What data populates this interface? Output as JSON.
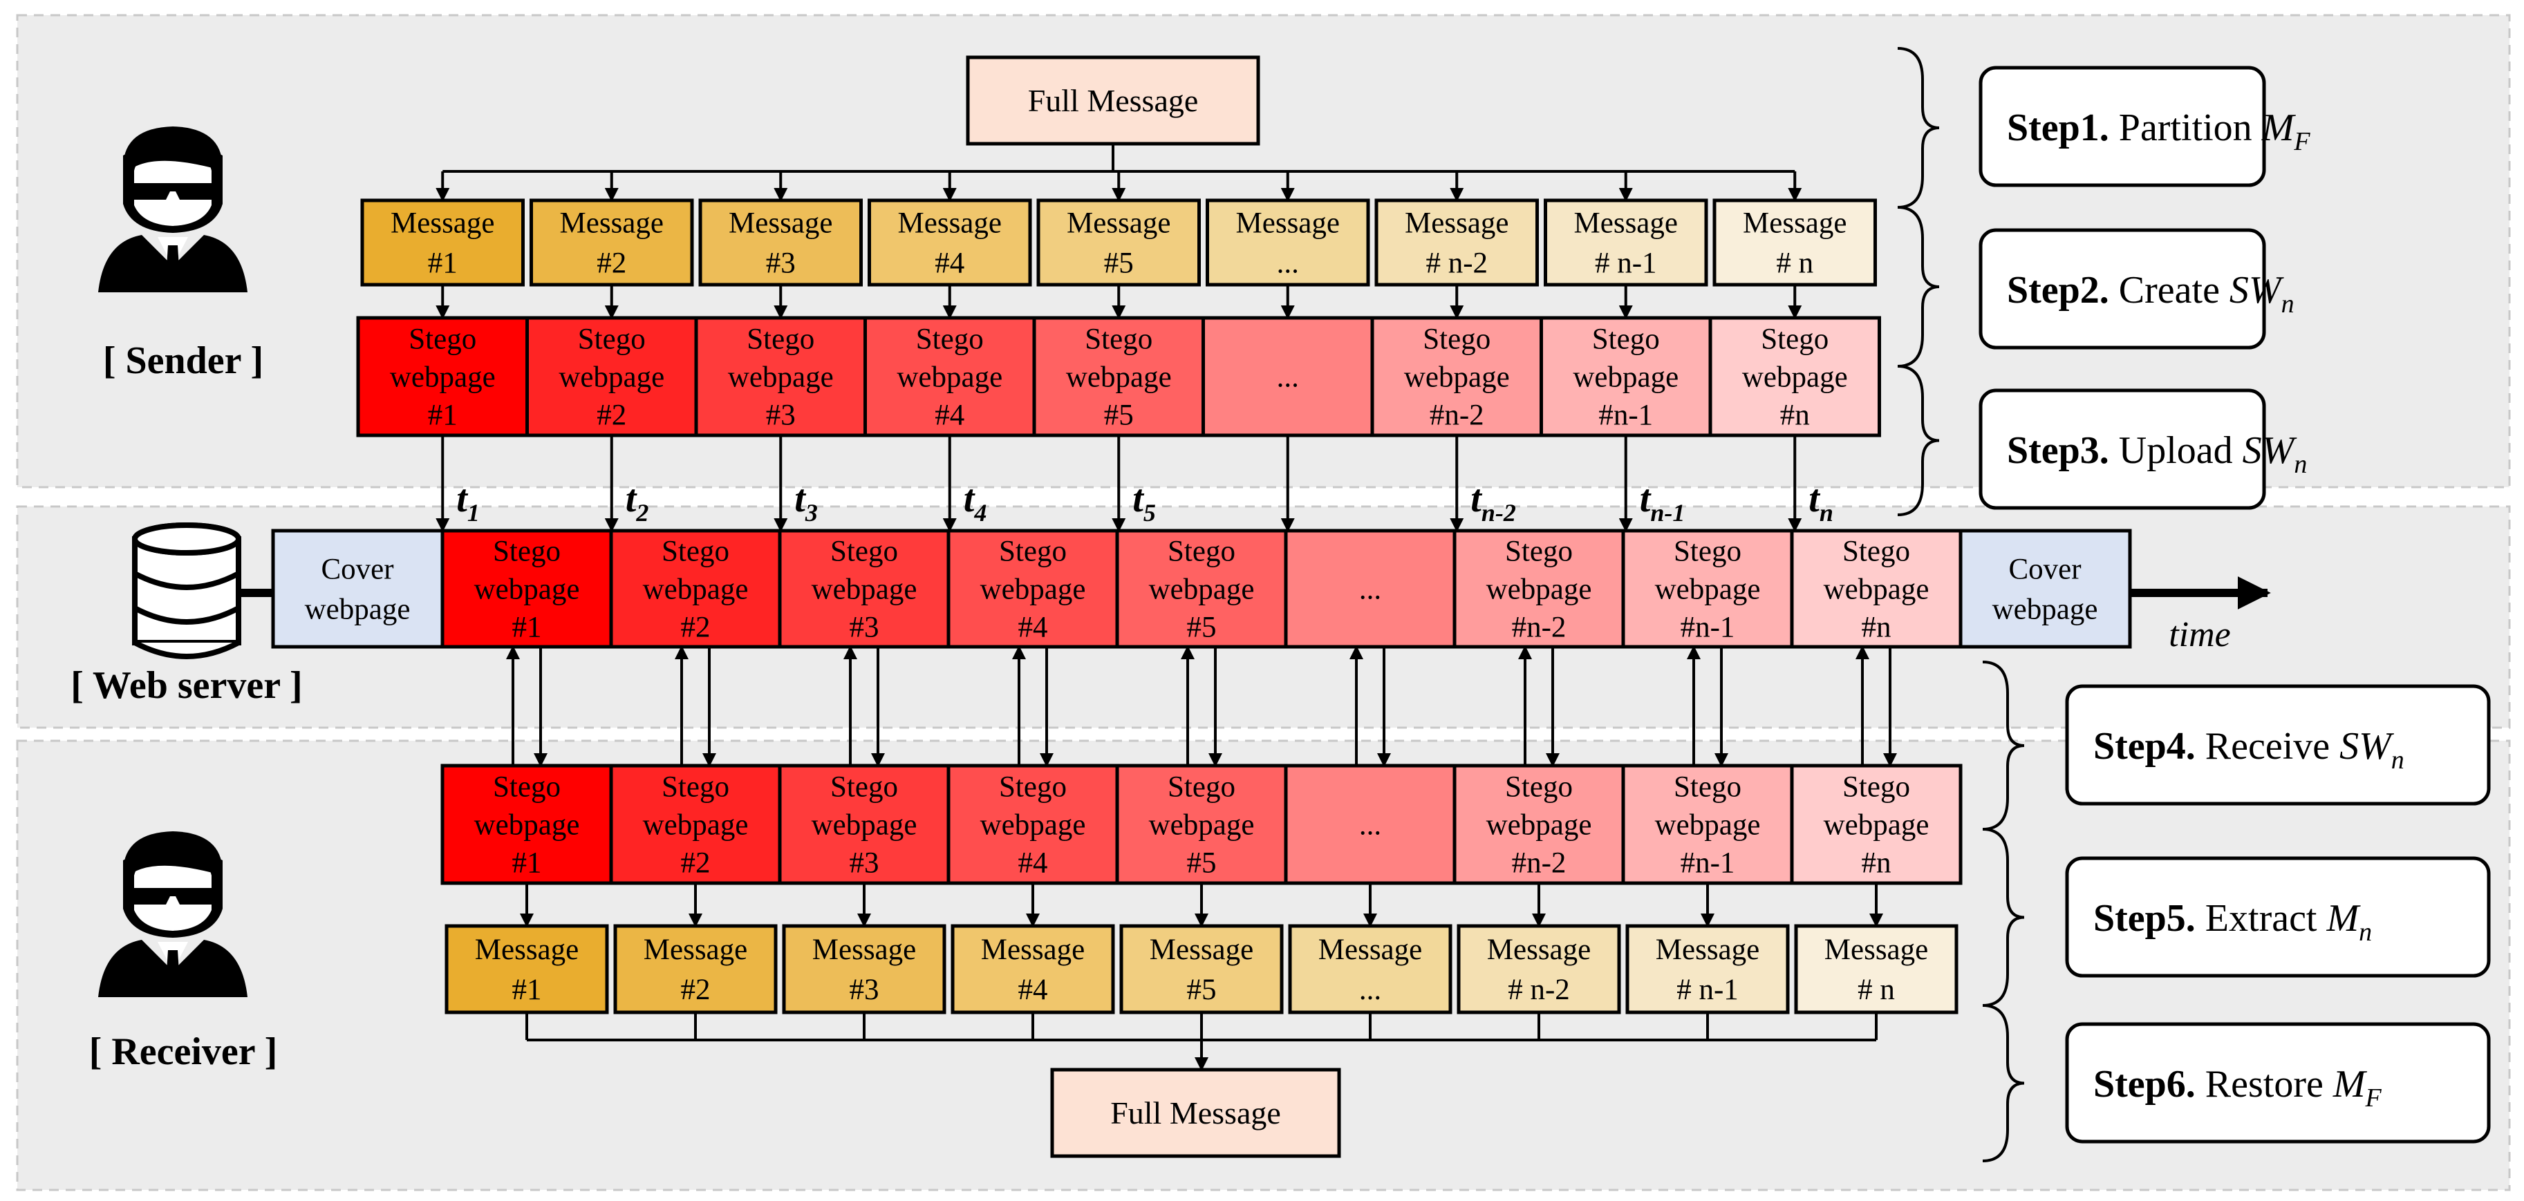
{
  "sender": {
    "label": "[ Sender ]",
    "full_message": "Full Message",
    "messages": [
      [
        "Message",
        "#1"
      ],
      [
        "Message",
        "#2"
      ],
      [
        "Message",
        "#3"
      ],
      [
        "Message",
        "#4"
      ],
      [
        "Message",
        "#5"
      ],
      [
        "Message",
        "..."
      ],
      [
        "Message",
        "# n-2"
      ],
      [
        "Message",
        "# n-1"
      ],
      [
        "Message",
        "# n"
      ]
    ],
    "stego": [
      [
        "Stego",
        "webpage",
        "#1"
      ],
      [
        "Stego",
        "webpage",
        "#2"
      ],
      [
        "Stego",
        "webpage",
        "#3"
      ],
      [
        "Stego",
        "webpage",
        "#4"
      ],
      [
        "Stego",
        "webpage",
        "#5"
      ],
      [
        "..."
      ],
      [
        "Stego",
        "webpage",
        "#n-2"
      ],
      [
        "Stego",
        "webpage",
        "#n-1"
      ],
      [
        "Stego",
        "webpage",
        "#n"
      ]
    ]
  },
  "times": [
    {
      "t": "t",
      "sub": "1"
    },
    {
      "t": "t",
      "sub": "2"
    },
    {
      "t": "t",
      "sub": "3"
    },
    {
      "t": "t",
      "sub": "4"
    },
    {
      "t": "t",
      "sub": "5"
    },
    null,
    {
      "t": "t",
      "sub": "n-2"
    },
    {
      "t": "t",
      "sub": "n-1"
    },
    {
      "t": "t",
      "sub": "n"
    }
  ],
  "server": {
    "label": "[ Web server ]",
    "cover": [
      "Cover",
      "webpage"
    ],
    "time_label": "time",
    "stego": [
      [
        "Stego",
        "webpage",
        "#1"
      ],
      [
        "Stego",
        "webpage",
        "#2"
      ],
      [
        "Stego",
        "webpage",
        "#3"
      ],
      [
        "Stego",
        "webpage",
        "#4"
      ],
      [
        "Stego",
        "webpage",
        "#5"
      ],
      [
        "..."
      ],
      [
        "Stego",
        "webpage",
        "#n-2"
      ],
      [
        "Stego",
        "webpage",
        "#n-1"
      ],
      [
        "Stego",
        "webpage",
        "#n"
      ]
    ]
  },
  "receiver": {
    "label": "[ Receiver ]",
    "full_message": "Full Message",
    "stego": [
      [
        "Stego",
        "webpage",
        "#1"
      ],
      [
        "Stego",
        "webpage",
        "#2"
      ],
      [
        "Stego",
        "webpage",
        "#3"
      ],
      [
        "Stego",
        "webpage",
        "#4"
      ],
      [
        "Stego",
        "webpage",
        "#5"
      ],
      [
        "..."
      ],
      [
        "Stego",
        "webpage",
        "#n-2"
      ],
      [
        "Stego",
        "webpage",
        "#n-1"
      ],
      [
        "Stego",
        "webpage",
        "#n"
      ]
    ],
    "messages": [
      [
        "Message",
        "#1"
      ],
      [
        "Message",
        "#2"
      ],
      [
        "Message",
        "#3"
      ],
      [
        "Message",
        "#4"
      ],
      [
        "Message",
        "#5"
      ],
      [
        "Message",
        "..."
      ],
      [
        "Message",
        "# n-2"
      ],
      [
        "Message",
        "# n-1"
      ],
      [
        "Message",
        "# n"
      ]
    ]
  },
  "steps": [
    {
      "bold": "Step1.",
      "text": "Partition",
      "sym": "M",
      "sub": "F"
    },
    {
      "bold": "Step2.",
      "text": "Create",
      "sym": "SW",
      "sub": "n"
    },
    {
      "bold": "Step3.",
      "text": "Upload",
      "sym": "SW",
      "sub": "n"
    },
    {
      "bold": "Step4.",
      "text": "Receive",
      "sym": "SW",
      "sub": "n"
    },
    {
      "bold": "Step5.",
      "text": "Extract",
      "sym": "M",
      "sub": "n"
    },
    {
      "bold": "Step6.",
      "text": "Restore",
      "sym": "M",
      "sub": "F"
    }
  ],
  "colors": {
    "panel_bg": "#ececec",
    "stego": [
      "#ff0000",
      "#ff2424",
      "#ff3b3b",
      "#ff4e4e",
      "#ff6262",
      "#ff8282",
      "#ff9c9c",
      "#ffb2b2",
      "#ffcccc"
    ],
    "message": [
      "#e9ad2f",
      "#ebb645",
      "#edbd58",
      "#f0c66c",
      "#f1ce80",
      "#f2d89a",
      "#f4e0b2",
      "#f6e7c6",
      "#f9efdb"
    ],
    "full_message": "#fde2d4",
    "cover": "#dae3f3"
  }
}
